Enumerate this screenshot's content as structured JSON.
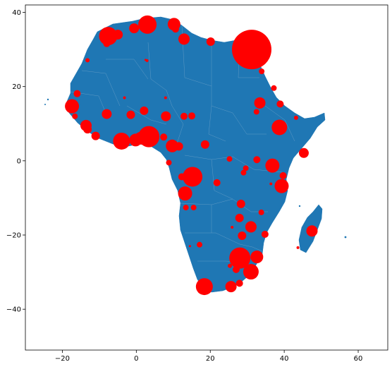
{
  "chart_data": {
    "type": "scatter",
    "title": "",
    "xlabel": "",
    "ylabel": "",
    "xlim": [
      -30,
      68
    ],
    "ylim": [
      -51,
      42
    ],
    "xticks": [
      -20,
      0,
      20,
      40,
      60
    ],
    "yticks": [
      -40,
      -20,
      0,
      20,
      40
    ],
    "xtick_labels": [
      "−20",
      "0",
      "20",
      "40",
      "60"
    ],
    "ytick_labels": [
      "−40",
      "−20",
      "0",
      "20",
      "40"
    ],
    "land_color": "#1f77b4",
    "marker_color": "#ff0000",
    "grid": false,
    "points": [
      {
        "x": 31.2,
        "y": 30.0,
        "size": 28
      },
      {
        "x": 3.0,
        "y": 36.7,
        "size": 13
      },
      {
        "x": -7.6,
        "y": 33.6,
        "size": 13
      },
      {
        "x": 10.2,
        "y": 36.8,
        "size": 9
      },
      {
        "x": -5.0,
        "y": 34.0,
        "size": 7
      },
      {
        "x": -0.6,
        "y": 35.7,
        "size": 7
      },
      {
        "x": 12.9,
        "y": 32.8,
        "size": 8
      },
      {
        "x": 20.1,
        "y": 32.1,
        "size": 6
      },
      {
        "x": 10.6,
        "y": 35.5,
        "size": 5
      },
      {
        "x": -8.0,
        "y": 31.6,
        "size": 5
      },
      {
        "x": 2.9,
        "y": 27.0,
        "size": 2
      },
      {
        "x": -13.2,
        "y": 27.1,
        "size": 3
      },
      {
        "x": 33.9,
        "y": 24.1,
        "size": 4
      },
      {
        "x": 37.2,
        "y": 19.6,
        "size": 4
      },
      {
        "x": -16.0,
        "y": 18.1,
        "size": 5
      },
      {
        "x": -17.4,
        "y": 14.7,
        "size": 10
      },
      {
        "x": -16.6,
        "y": 12.0,
        "size": 4
      },
      {
        "x": -13.6,
        "y": 9.5,
        "size": 8
      },
      {
        "x": -13.2,
        "y": 8.5,
        "size": 6
      },
      {
        "x": -11.0,
        "y": 6.7,
        "size": 6
      },
      {
        "x": -8.0,
        "y": 12.6,
        "size": 7
      },
      {
        "x": -4.0,
        "y": 5.3,
        "size": 12
      },
      {
        "x": -0.2,
        "y": 5.6,
        "size": 9
      },
      {
        "x": 1.2,
        "y": 6.1,
        "size": 9
      },
      {
        "x": 3.4,
        "y": 6.5,
        "size": 15
      },
      {
        "x": 7.4,
        "y": 6.4,
        "size": 5
      },
      {
        "x": 2.1,
        "y": 13.5,
        "size": 6
      },
      {
        "x": -1.5,
        "y": 12.4,
        "size": 6
      },
      {
        "x": -3.2,
        "y": 17.0,
        "size": 2
      },
      {
        "x": 7.9,
        "y": 17.0,
        "size": 2
      },
      {
        "x": 8.0,
        "y": 12.0,
        "size": 7
      },
      {
        "x": 12.9,
        "y": 12.0,
        "size": 5
      },
      {
        "x": 15.0,
        "y": 12.1,
        "size": 5
      },
      {
        "x": 9.7,
        "y": 4.0,
        "size": 9
      },
      {
        "x": 11.5,
        "y": 3.9,
        "size": 6
      },
      {
        "x": 8.8,
        "y": -0.5,
        "size": 4
      },
      {
        "x": 18.6,
        "y": 4.4,
        "size": 6
      },
      {
        "x": 15.2,
        "y": -4.3,
        "size": 14
      },
      {
        "x": 12.3,
        "y": -4.3,
        "size": 5
      },
      {
        "x": 13.2,
        "y": -8.8,
        "size": 10
      },
      {
        "x": 13.4,
        "y": -12.6,
        "size": 4
      },
      {
        "x": 15.5,
        "y": -12.6,
        "size": 4
      },
      {
        "x": 21.8,
        "y": -5.9,
        "size": 5
      },
      {
        "x": 25.2,
        "y": 0.5,
        "size": 4
      },
      {
        "x": 29.6,
        "y": -2.0,
        "size": 4
      },
      {
        "x": 29.0,
        "y": -3.2,
        "size": 4
      },
      {
        "x": 32.6,
        "y": 0.3,
        "size": 5
      },
      {
        "x": 36.8,
        "y": -1.3,
        "size": 10
      },
      {
        "x": 39.3,
        "y": -6.8,
        "size": 10
      },
      {
        "x": 39.7,
        "y": -4.0,
        "size": 5
      },
      {
        "x": 33.4,
        "y": 15.6,
        "size": 8
      },
      {
        "x": 32.5,
        "y": 13.2,
        "size": 4
      },
      {
        "x": 38.7,
        "y": 9.0,
        "size": 11
      },
      {
        "x": 38.9,
        "y": 15.3,
        "size": 5
      },
      {
        "x": 43.2,
        "y": 11.6,
        "size": 3
      },
      {
        "x": 45.3,
        "y": 2.1,
        "size": 7
      },
      {
        "x": 36.4,
        "y": -6.2,
        "size": 2
      },
      {
        "x": 28.3,
        "y": -11.6,
        "size": 6
      },
      {
        "x": 27.9,
        "y": -15.4,
        "size": 6
      },
      {
        "x": 31.0,
        "y": -17.8,
        "size": 8
      },
      {
        "x": 33.8,
        "y": -13.9,
        "size": 4
      },
      {
        "x": 28.6,
        "y": -20.2,
        "size": 6
      },
      {
        "x": 34.8,
        "y": -19.8,
        "size": 5
      },
      {
        "x": 25.9,
        "y": -17.9,
        "size": 2
      },
      {
        "x": 17.1,
        "y": -22.6,
        "size": 4
      },
      {
        "x": 28.0,
        "y": -26.2,
        "size": 15
      },
      {
        "x": 31.0,
        "y": -29.9,
        "size": 11
      },
      {
        "x": 32.6,
        "y": -25.9,
        "size": 9
      },
      {
        "x": 27.0,
        "y": -29.3,
        "size": 5
      },
      {
        "x": 18.4,
        "y": -33.9,
        "size": 12
      },
      {
        "x": 25.6,
        "y": -33.9,
        "size": 8
      },
      {
        "x": 27.9,
        "y": -33.0,
        "size": 5
      },
      {
        "x": 47.5,
        "y": -18.9,
        "size": 8
      },
      {
        "x": 43.7,
        "y": -23.4,
        "size": 2
      },
      {
        "x": 2.5,
        "y": 27.2,
        "size": 1.5
      },
      {
        "x": 25.3,
        "y": -28.3,
        "size": 3
      },
      {
        "x": 14.5,
        "y": -23.0,
        "size": 1.5
      }
    ]
  }
}
